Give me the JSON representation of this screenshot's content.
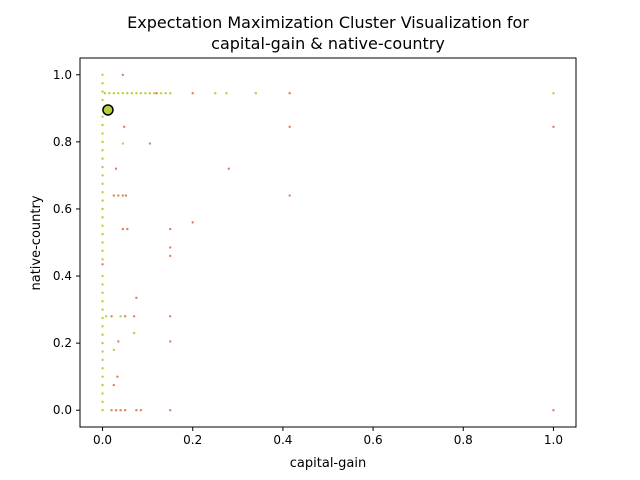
{
  "chart_data": {
    "type": "scatter",
    "title_line1": "Expectation Maximization Cluster Visualization for",
    "title_line2": "capital-gain & native-country",
    "xlabel": "capital-gain",
    "ylabel": "native-country",
    "xlim": [
      -0.05,
      1.05
    ],
    "ylim": [
      -0.05,
      1.05
    ],
    "xticks": [
      0.0,
      0.2,
      0.4,
      0.6,
      0.8,
      1.0
    ],
    "yticks": [
      0.0,
      0.2,
      0.4,
      0.6,
      0.8,
      1.0
    ],
    "xtick_labels": [
      "0.0",
      "0.2",
      "0.4",
      "0.6",
      "0.8",
      "1.0"
    ],
    "ytick_labels": [
      "0.0",
      "0.2",
      "0.4",
      "0.6",
      "0.8",
      "1.0"
    ],
    "grid": false,
    "colors": {
      "cluster_a": "#bccd3c",
      "cluster_b": "#e0805a",
      "centroid": "#bccd3c",
      "centroid_edge": "#000000"
    },
    "series": [
      {
        "cluster": "a",
        "points": [
          [
            0.0,
            0.0
          ],
          [
            0.0,
            0.025
          ],
          [
            0.0,
            0.05
          ],
          [
            0.0,
            0.075
          ],
          [
            0.0,
            0.1
          ],
          [
            0.0,
            0.125
          ],
          [
            0.0,
            0.15
          ],
          [
            0.0,
            0.175
          ],
          [
            0.0,
            0.2
          ],
          [
            0.0,
            0.225
          ],
          [
            0.0,
            0.25
          ],
          [
            0.0,
            0.275
          ],
          [
            0.0,
            0.3
          ],
          [
            0.0,
            0.325
          ],
          [
            0.0,
            0.35
          ],
          [
            0.0,
            0.375
          ],
          [
            0.0,
            0.4
          ],
          [
            0.0,
            0.45
          ],
          [
            0.0,
            0.475
          ],
          [
            0.0,
            0.5
          ],
          [
            0.0,
            0.525
          ],
          [
            0.0,
            0.55
          ],
          [
            0.0,
            0.575
          ],
          [
            0.0,
            0.6
          ],
          [
            0.0,
            0.625
          ],
          [
            0.0,
            0.65
          ],
          [
            0.0,
            0.675
          ],
          [
            0.0,
            0.7
          ],
          [
            0.0,
            0.725
          ],
          [
            0.0,
            0.75
          ],
          [
            0.0,
            0.775
          ],
          [
            0.0,
            0.8
          ],
          [
            0.0,
            0.825
          ],
          [
            0.0,
            0.85
          ],
          [
            0.0,
            0.875
          ],
          [
            0.0,
            0.925
          ],
          [
            0.0,
            0.95
          ],
          [
            0.0,
            0.975
          ],
          [
            0.0,
            1.0
          ],
          [
            0.008,
            0.28
          ],
          [
            0.025,
            0.18
          ],
          [
            0.07,
            0.23
          ],
          [
            0.045,
            0.795
          ],
          [
            0.04,
            0.28
          ],
          [
            0.005,
            0.945
          ],
          [
            0.015,
            0.945
          ],
          [
            0.025,
            0.945
          ],
          [
            0.035,
            0.945
          ],
          [
            0.045,
            0.945
          ],
          [
            0.055,
            0.945
          ],
          [
            0.065,
            0.945
          ],
          [
            0.075,
            0.945
          ],
          [
            0.085,
            0.945
          ],
          [
            0.095,
            0.945
          ],
          [
            0.105,
            0.945
          ],
          [
            0.115,
            0.945
          ],
          [
            0.13,
            0.945
          ],
          [
            0.14,
            0.945
          ],
          [
            0.15,
            0.945
          ],
          [
            0.25,
            0.945
          ],
          [
            0.275,
            0.945
          ],
          [
            0.34,
            0.945
          ],
          [
            1.0,
            0.945
          ]
        ]
      },
      {
        "cluster": "b",
        "points": [
          [
            0.0,
            0.435
          ],
          [
            0.02,
            0.0
          ],
          [
            0.03,
            0.0
          ],
          [
            0.04,
            0.0
          ],
          [
            0.05,
            0.0
          ],
          [
            0.075,
            0.0
          ],
          [
            0.085,
            0.0
          ],
          [
            0.15,
            0.0
          ],
          [
            1.0,
            0.0
          ],
          [
            0.025,
            0.075
          ],
          [
            0.033,
            0.1
          ],
          [
            0.035,
            0.205
          ],
          [
            0.15,
            0.205
          ],
          [
            0.02,
            0.28
          ],
          [
            0.05,
            0.28
          ],
          [
            0.07,
            0.28
          ],
          [
            0.15,
            0.28
          ],
          [
            0.075,
            0.335
          ],
          [
            0.15,
            0.46
          ],
          [
            0.15,
            0.485
          ],
          [
            0.15,
            0.54
          ],
          [
            0.045,
            0.54
          ],
          [
            0.055,
            0.54
          ],
          [
            0.2,
            0.56
          ],
          [
            0.025,
            0.64
          ],
          [
            0.035,
            0.64
          ],
          [
            0.045,
            0.64
          ],
          [
            0.052,
            0.64
          ],
          [
            0.415,
            0.64
          ],
          [
            0.03,
            0.72
          ],
          [
            0.28,
            0.72
          ],
          [
            0.105,
            0.795
          ],
          [
            0.048,
            0.845
          ],
          [
            0.415,
            0.845
          ],
          [
            1.0,
            0.845
          ],
          [
            0.045,
            1.0
          ],
          [
            0.12,
            0.945
          ],
          [
            0.2,
            0.945
          ],
          [
            0.415,
            0.945
          ]
        ]
      }
    ],
    "centroid": [
      0.012,
      0.895
    ]
  }
}
